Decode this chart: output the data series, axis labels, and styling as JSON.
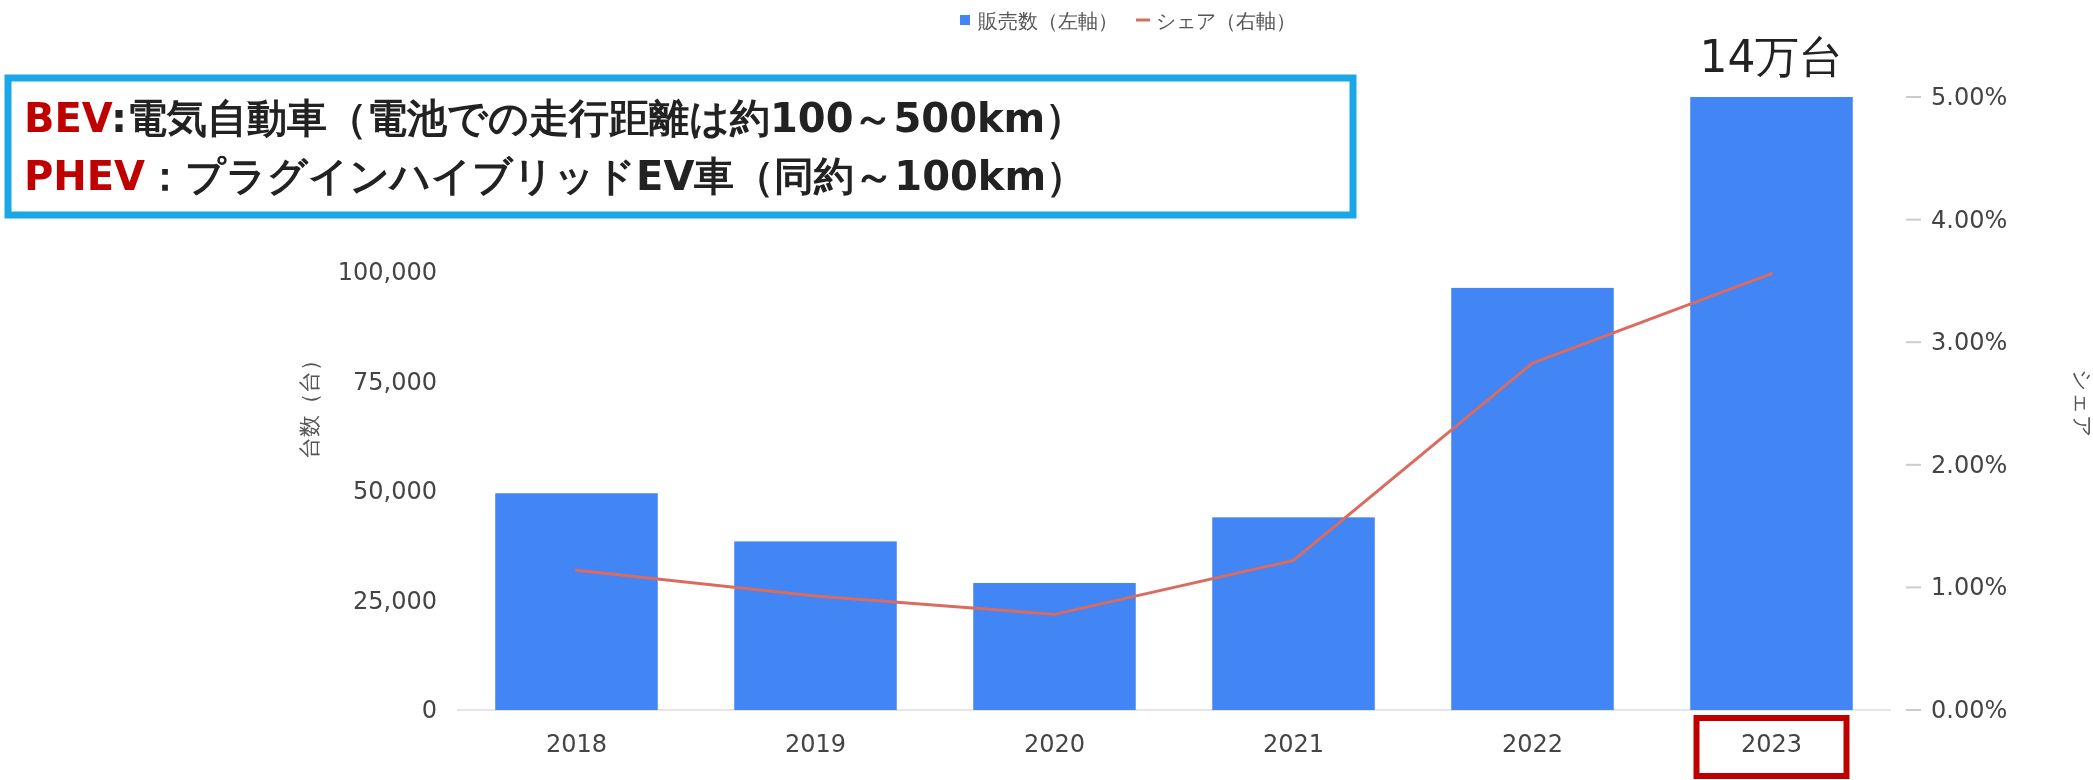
{
  "chart_data": {
    "type": "bar",
    "categories": [
      "2018",
      "2019",
      "2020",
      "2021",
      "2022",
      "2023"
    ],
    "series": [
      {
        "name": "販売数（左軸）",
        "color": "#4285f4",
        "values": [
          49500,
          38500,
          29000,
          44000,
          96400,
          140000
        ]
      },
      {
        "name": "シェア（右軸）",
        "type": "line",
        "axis": "y2",
        "color": "#db6b5f",
        "values": [
          1.14,
          0.93,
          0.78,
          1.22,
          2.83,
          3.56
        ]
      }
    ],
    "ylabel": "台数（台）",
    "y2label": "シェア",
    "ylim": [
      0,
      140000
    ],
    "yticks": [
      {
        "value": 0,
        "label": "0"
      },
      {
        "value": 25000,
        "label": "25,000"
      },
      {
        "value": 50000,
        "label": "50,000"
      },
      {
        "value": 75000,
        "label": "75,000"
      },
      {
        "value": 100000,
        "label": "100,000"
      }
    ],
    "y2lim": [
      0,
      5
    ],
    "y2ticks": [
      {
        "value": 0,
        "label": "0.00%"
      },
      {
        "value": 1,
        "label": "1.00%"
      },
      {
        "value": 2,
        "label": "2.00%"
      },
      {
        "value": 3,
        "label": "3.00%"
      },
      {
        "value": 4,
        "label": "4.00%"
      },
      {
        "value": 5,
        "label": "5.00%"
      }
    ],
    "legend": "top",
    "annotations": [
      {
        "text": "14万台",
        "x": "2023",
        "y": 140000
      },
      "BEV:電気自動車（電池での走行距離は約100～500km）",
      "PHEV：プラグインハイブリッドEV車（同約～100km）"
    ]
  }
}
